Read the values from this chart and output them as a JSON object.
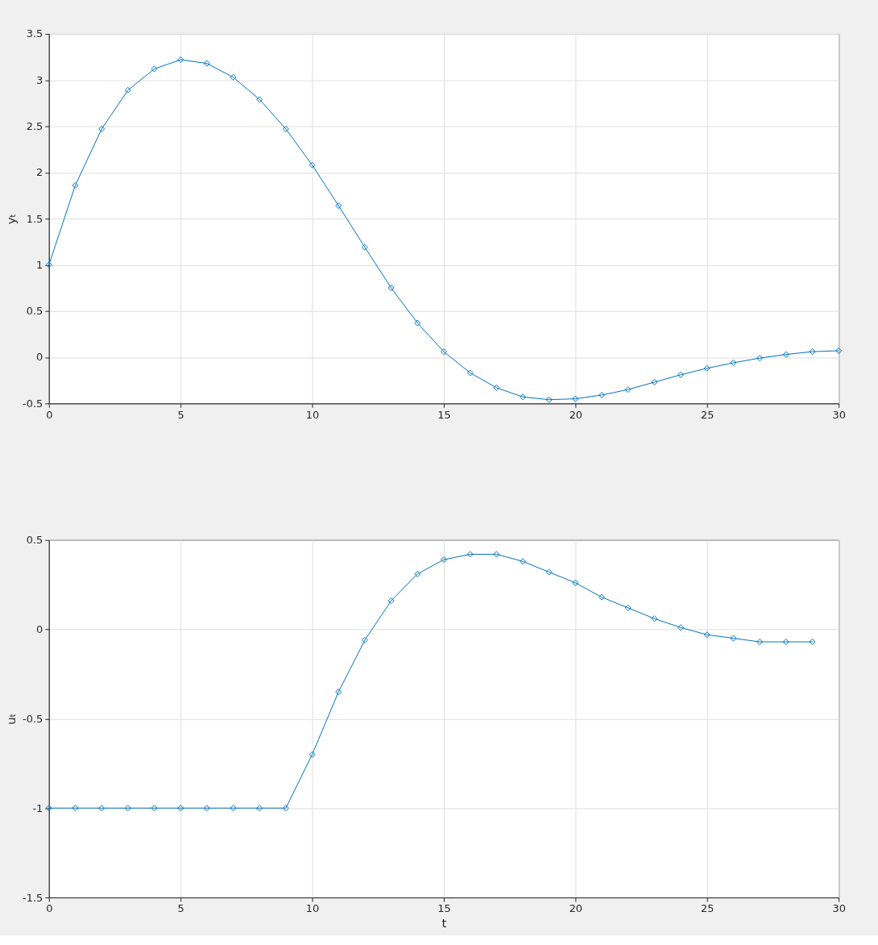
{
  "chart_data": [
    {
      "type": "line",
      "ylabel": "yₜ",
      "x": [
        0,
        1,
        2,
        3,
        4,
        5,
        6,
        7,
        8,
        9,
        10,
        11,
        12,
        13,
        14,
        15,
        16,
        17,
        18,
        19,
        20,
        21,
        22,
        23,
        24,
        25,
        26,
        27,
        28,
        29,
        30
      ],
      "series": [
        {
          "color": "#0072bd",
          "values": [
            1.0,
            1.86,
            2.47,
            2.89,
            3.12,
            3.22,
            3.18,
            3.03,
            2.79,
            2.47,
            2.08,
            1.64,
            1.19,
            0.75,
            0.37,
            0.06,
            -0.17,
            -0.33,
            -0.43,
            -0.46,
            -0.45,
            -0.41,
            -0.35,
            -0.27,
            -0.19,
            -0.12,
            -0.06,
            -0.01,
            0.03,
            0.06,
            0.07
          ]
        }
      ],
      "xlim": [
        0,
        30
      ],
      "xticks": [
        0,
        5,
        10,
        15,
        20,
        25,
        30
      ],
      "ylim": [
        -0.5,
        3.5
      ],
      "yticks": [
        -0.5,
        0,
        0.5,
        1,
        1.5,
        2,
        2.5,
        3,
        3.5
      ],
      "grid": true,
      "marker": "diamond",
      "line_style": "solid"
    },
    {
      "type": "line",
      "xlabel": "t",
      "ylabel": "uₜ",
      "x": [
        0,
        1,
        2,
        3,
        4,
        5,
        6,
        7,
        8,
        9,
        10,
        11,
        12,
        13,
        14,
        15,
        16,
        17,
        18,
        19,
        20,
        21,
        22,
        23,
        24,
        25,
        26,
        27,
        28,
        29
      ],
      "series": [
        {
          "color": "#0072bd",
          "values": [
            -1,
            -1,
            -1,
            -1,
            -1,
            -1,
            -1,
            -1,
            -1,
            -1,
            -0.7,
            -0.35,
            -0.06,
            0.16,
            0.31,
            0.39,
            0.42,
            0.42,
            0.38,
            0.32,
            0.26,
            0.18,
            0.12,
            0.06,
            0.01,
            -0.03,
            -0.05,
            -0.07,
            -0.07,
            -0.07
          ]
        }
      ],
      "xlim": [
        0,
        30
      ],
      "xticks": [
        0,
        5,
        10,
        15,
        20,
        25,
        30
      ],
      "ylim": [
        -1.5,
        0.5
      ],
      "yticks": [
        -1.5,
        -1,
        -0.5,
        0,
        0.5
      ],
      "grid": true,
      "marker": "diamond",
      "line_style": "solid"
    }
  ]
}
